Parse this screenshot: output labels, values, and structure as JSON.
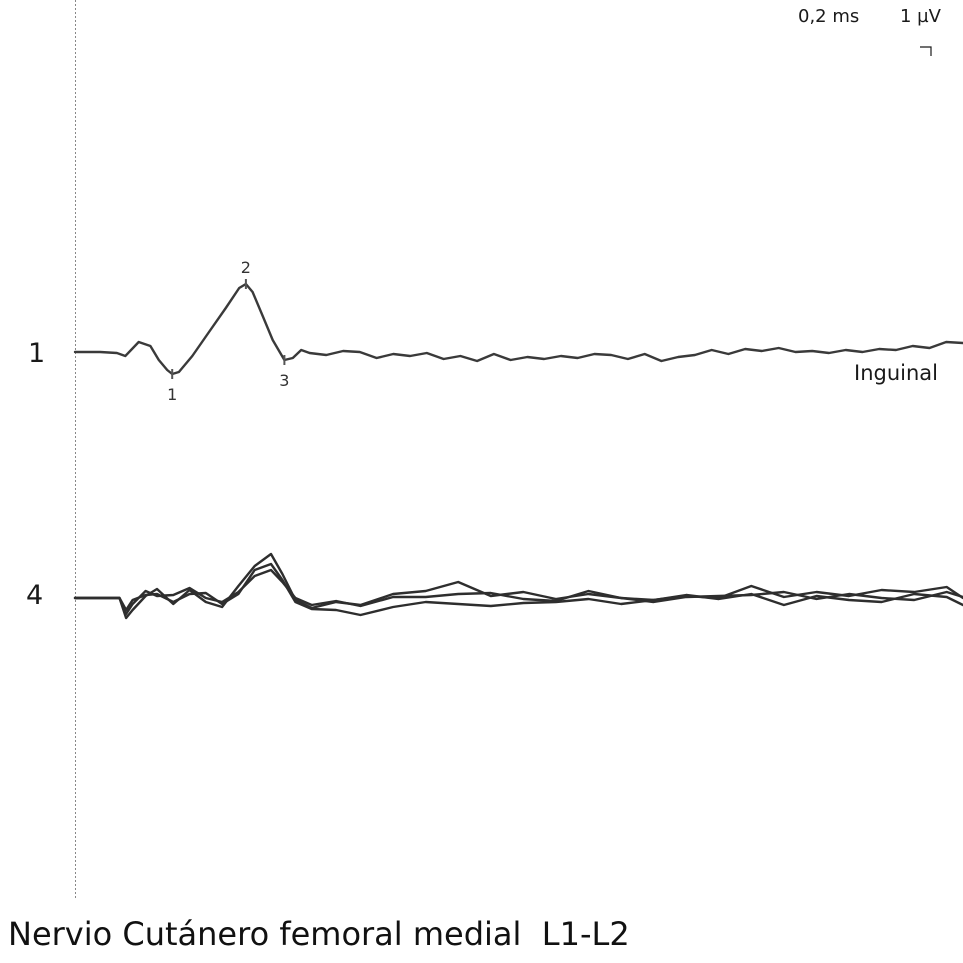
{
  "scale": {
    "time": "0,2 ms",
    "amplitude": "1 µV"
  },
  "footer": {
    "title": "Nervio Cutánero femoral medial  L1-L2"
  },
  "chart_data": {
    "type": "line",
    "title": "Nervio Cutánero femoral medial  L1-L2",
    "time_per_division": "0,2 ms",
    "amplitude_per_division": "1 µV",
    "x_unit": "ms",
    "y_unit": "µV",
    "traces": [
      {
        "row_label": "1",
        "site": "Inguinal",
        "color": "#3a3a3a",
        "markers": [
          {
            "label": "1",
            "x": 0.58
          },
          {
            "label": "2",
            "x": 1.02
          },
          {
            "label": "3",
            "x": 1.25
          }
        ],
        "series": [
          {
            "x": [
              0,
              0.15,
              0.25,
              0.3,
              0.38,
              0.45,
              0.5,
              0.55,
              0.58,
              0.62,
              0.7,
              0.8,
              0.9,
              0.98,
              1.02,
              1.06,
              1.12,
              1.18,
              1.25,
              1.3,
              1.35,
              1.4,
              1.5,
              1.6,
              1.7,
              1.8,
              1.9,
              2.0,
              2.1,
              2.2,
              2.3,
              2.4,
              2.5,
              2.6,
              2.7,
              2.8,
              2.9,
              3.0,
              3.1,
              3.2,
              3.3,
              3.4,
              3.5,
              3.6,
              3.7,
              3.8,
              3.9,
              4.0,
              4.1,
              4.2,
              4.3,
              4.4,
              4.5,
              4.6,
              4.7,
              4.8,
              4.9,
              5.0,
              5.1,
              5.2,
              5.3
            ],
            "values": [
              0,
              0,
              -0.05,
              -0.2,
              0.5,
              0.3,
              -0.4,
              -0.9,
              -1.1,
              -1.0,
              -0.2,
              1.0,
              2.2,
              3.2,
              3.4,
              3.0,
              1.8,
              0.6,
              -0.4,
              -0.3,
              0.1,
              -0.05,
              -0.15,
              0.05,
              0.0,
              -0.3,
              -0.1,
              -0.2,
              -0.05,
              -0.35,
              -0.2,
              -0.45,
              -0.1,
              -0.4,
              -0.25,
              -0.35,
              -0.2,
              -0.3,
              -0.1,
              -0.15,
              -0.35,
              -0.1,
              -0.45,
              -0.25,
              -0.15,
              0.1,
              -0.1,
              0.15,
              0.05,
              0.2,
              0.0,
              0.05,
              -0.05,
              0.1,
              0.0,
              0.15,
              0.1,
              0.3,
              0.2,
              0.5,
              0.45
            ]
          }
        ]
      },
      {
        "row_label": "4",
        "site": "",
        "color": "#2e2e2e",
        "markers": [],
        "series": [
          {
            "x": [
              0,
              0.12,
              0.16,
              0.2,
              0.28,
              0.35,
              0.45,
              0.55,
              0.65,
              0.75,
              0.85,
              0.95,
              1.05,
              1.12,
              1.2,
              1.3,
              1.45,
              1.6,
              1.8,
              2.0,
              2.2,
              2.4,
              2.6,
              2.8,
              3.0,
              3.2,
              3.4,
              3.6,
              3.8,
              4.0,
              4.2,
              4.4,
              4.6,
              4.8,
              5.0,
              5.2,
              5.3
            ],
            "values": [
              0,
              0,
              -1.0,
              -0.6,
              0.1,
              0.45,
              -0.3,
              0.4,
              -0.2,
              -0.45,
              0.6,
              1.6,
              2.2,
              1.2,
              -0.1,
              -0.5,
              -0.2,
              -0.35,
              0.2,
              0.35,
              0.8,
              0.1,
              0.3,
              -0.05,
              0.2,
              0.0,
              -0.1,
              0.1,
              0.0,
              0.6,
              0.05,
              0.3,
              0.1,
              0.4,
              0.3,
              0.55,
              0.0
            ]
          },
          {
            "x": [
              0,
              0.12,
              0.16,
              0.2,
              0.28,
              0.35,
              0.45,
              0.55,
              0.65,
              0.75,
              0.85,
              0.95,
              1.05,
              1.12,
              1.2,
              1.3,
              1.45,
              1.6,
              1.8,
              2.0,
              2.2,
              2.4,
              2.6,
              2.8,
              3.0,
              3.2,
              3.4,
              3.6,
              3.8,
              4.0,
              4.2,
              4.4,
              4.6,
              4.8,
              5.0,
              5.2,
              5.3
            ],
            "values": [
              0,
              0,
              -0.8,
              -0.3,
              0.35,
              0.1,
              0.15,
              0.5,
              0.0,
              -0.2,
              0.3,
              1.1,
              1.4,
              0.8,
              0.0,
              -0.35,
              -0.15,
              -0.4,
              0.05,
              0.05,
              0.2,
              0.25,
              -0.05,
              -0.15,
              0.35,
              0.0,
              -0.2,
              0.05,
              0.1,
              0.15,
              0.3,
              -0.05,
              0.2,
              0.0,
              -0.1,
              0.3,
              0.05
            ]
          },
          {
            "x": [
              0,
              0.12,
              0.16,
              0.2,
              0.28,
              0.35,
              0.45,
              0.55,
              0.65,
              0.75,
              0.85,
              0.95,
              1.05,
              1.12,
              1.2,
              1.3,
              1.45,
              1.6,
              1.8,
              2.0,
              2.2,
              2.4,
              2.6,
              2.8,
              3.0,
              3.2,
              3.4,
              3.6,
              3.8,
              4.0,
              4.2,
              4.4,
              4.6,
              4.8,
              5.0,
              5.2,
              5.3
            ],
            "values": [
              0,
              0,
              -0.6,
              -0.1,
              0.15,
              0.2,
              -0.2,
              0.2,
              0.25,
              -0.3,
              0.2,
              1.4,
              1.7,
              0.9,
              -0.2,
              -0.55,
              -0.6,
              -0.85,
              -0.45,
              -0.2,
              -0.3,
              -0.4,
              -0.25,
              -0.2,
              -0.05,
              -0.3,
              -0.1,
              0.15,
              -0.05,
              0.2,
              -0.35,
              0.1,
              -0.1,
              -0.2,
              0.2,
              0.05,
              -0.35
            ]
          }
        ]
      }
    ]
  }
}
